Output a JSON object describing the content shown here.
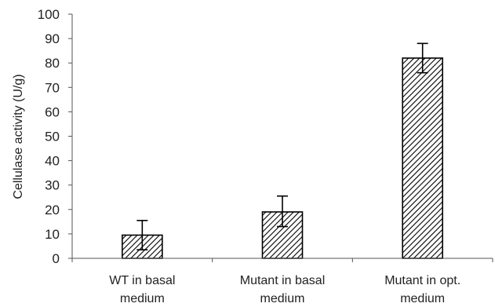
{
  "chart_data": {
    "type": "bar",
    "title": "",
    "xlabel": "",
    "ylabel": "Cellulase activity (U/g)",
    "ylim": [
      0,
      100
    ],
    "yticks": [
      0,
      10,
      20,
      30,
      40,
      50,
      60,
      70,
      80,
      90,
      100
    ],
    "grid": false,
    "legend": "none",
    "categories": [
      [
        "WT in basal",
        "medium"
      ],
      [
        "Mutant in basal",
        "medium"
      ],
      [
        "Mutant in opt.",
        "medium"
      ]
    ],
    "values": [
      9.5,
      19,
      82
    ],
    "error_low": [
      3.5,
      13,
      76
    ],
    "error_high": [
      15.5,
      25.5,
      88
    ],
    "bar_fill": "diagonal-hatch",
    "colors": {
      "bar_stroke": "#000000",
      "hatch": "#000000",
      "axis": "#555555"
    }
  }
}
